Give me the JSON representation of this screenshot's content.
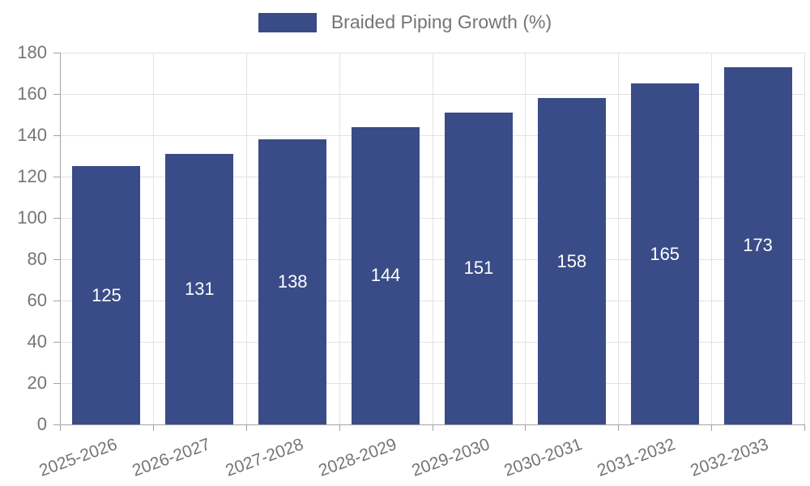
{
  "chart_data": {
    "type": "bar",
    "legend": "Braided Piping Growth (%)",
    "categories": [
      "2025-2026",
      "2026-2027",
      "2027-2028",
      "2028-2029",
      "2029-2030",
      "2030-2031",
      "2031-2032",
      "2032-2033"
    ],
    "values": [
      125,
      131,
      138,
      144,
      151,
      158,
      165,
      173
    ],
    "ylim": [
      0,
      180
    ],
    "ytick_step": 20,
    "ytick_labels": [
      "0",
      "20",
      "40",
      "60",
      "80",
      "100",
      "120",
      "140",
      "160",
      "180"
    ],
    "grid": true,
    "legend_position": "top-center",
    "x_label_rotation": -20,
    "colors": {
      "bar": "#394C87",
      "bar_value_text": "#ffffff",
      "axis_text": "#757575",
      "grid_line": "#e2e2e2",
      "axis_line": "#a3a3a3",
      "background": "#ffffff"
    }
  }
}
